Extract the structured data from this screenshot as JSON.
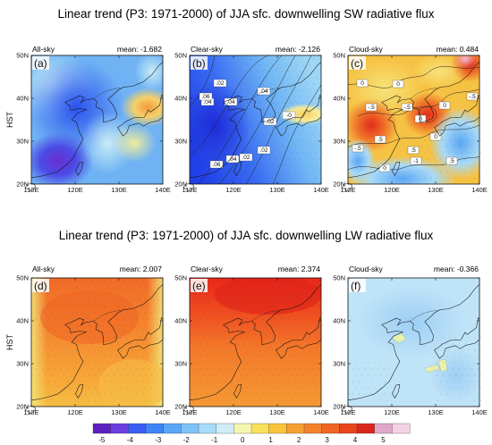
{
  "chart_data": {
    "type": "heatmap",
    "row_titles": [
      "Linear trend (P3: 1971-2000) of JJA sfc. downwelling SW radiative flux",
      "Linear trend (P3: 1971-2000) of JJA sfc. downwelling LW radiative flux"
    ],
    "y_axis_label": "HST",
    "x_ticks": [
      "110E",
      "120E",
      "130E",
      "140E"
    ],
    "y_ticks": [
      "20N",
      "30N",
      "40N",
      "50N"
    ],
    "lon_range": [
      110,
      140
    ],
    "lat_range": [
      20,
      50
    ],
    "colorbar": {
      "ticks": [
        "-5",
        "-4",
        "-3",
        "-2",
        "-1",
        "0",
        "1",
        "2",
        "3",
        "4",
        "5"
      ],
      "range": [
        -5,
        5
      ],
      "colors": [
        "#5e1fbf",
        "#6b3fe0",
        "#3a5cf2",
        "#3e84f5",
        "#58a6f7",
        "#7ec3f7",
        "#a7dbf8",
        "#cfecf8",
        "#f5f5b0",
        "#f8e15a",
        "#f8c43a",
        "#f5a032",
        "#f2822b",
        "#ee6524",
        "#e8451c",
        "#d8271a",
        "#e0a8c8",
        "#f3d2e6"
      ]
    },
    "panels": [
      {
        "letter": "(a)",
        "title": "All-sky",
        "mean_label": "mean: -1.682"
      },
      {
        "letter": "(b)",
        "title": "Clear-sky",
        "mean_label": "mean: -2.126",
        "contour_labels": [
          ".02",
          ".04",
          ".04",
          ".06",
          ".04",
          ".02",
          ".02",
          ".02",
          ".04",
          ".06",
          "-0"
        ]
      },
      {
        "letter": "(c)",
        "title": "Cloud-sky",
        "mean_label": "mean: 0.484",
        "contour_labels": [
          "0",
          "0",
          "-.5",
          "-.5",
          "0",
          "-.5",
          "0",
          "0",
          ".5",
          ".5",
          "0",
          "-.5",
          "-1",
          ".5"
        ]
      },
      {
        "letter": "(d)",
        "title": "All-sky",
        "mean_label": "mean: 2.007"
      },
      {
        "letter": "(e)",
        "title": "Clear-sky",
        "mean_label": "mean: 2.374"
      },
      {
        "letter": "(f)",
        "title": "Cloud-sky",
        "mean_label": "mean: -0.366"
      }
    ]
  }
}
